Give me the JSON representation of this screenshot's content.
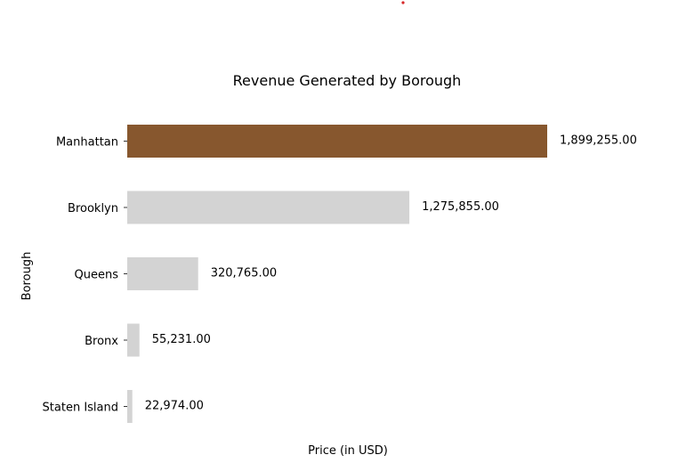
{
  "chart_data": {
    "type": "bar",
    "orientation": "horizontal",
    "title": "Revenue Generated by Borough",
    "xlabel": "Price (in USD)",
    "ylabel": "Borough",
    "categories": [
      "Manhattan",
      "Brooklyn",
      "Queens",
      "Bronx",
      "Staten Island"
    ],
    "values": [
      1899255.0,
      1275855.0,
      320765.0,
      55231.0,
      22974.0
    ],
    "value_labels": [
      "1,899,255.00",
      "1,275,855.00",
      "320,765.00",
      "55,231.00",
      "22,974.00"
    ],
    "highlight_category": "Manhattan",
    "colors": {
      "highlight": "#87572e",
      "default": "#d3d3d3",
      "marker": "#d62728"
    },
    "grid": false,
    "legend": "none"
  }
}
